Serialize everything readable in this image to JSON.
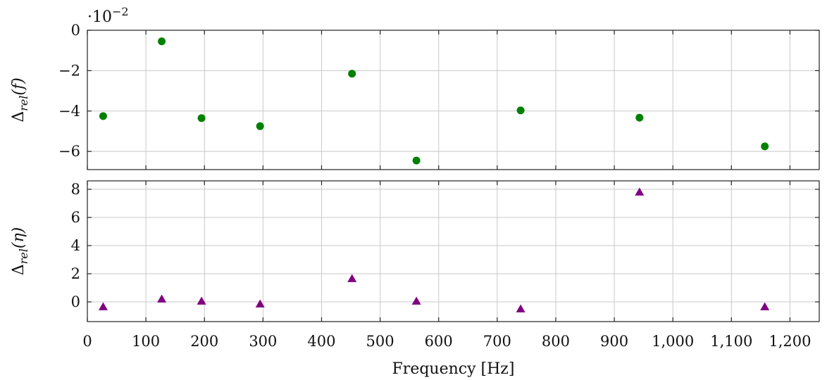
{
  "chart_data": [
    {
      "type": "scatter",
      "xlabel": "",
      "ylabel_main": "Δ",
      "ylabel_sub": "rel",
      "ylabel_arg": "(f)",
      "y_exponent_base": "·10",
      "y_exponent_power": "−2",
      "xlim": [
        0,
        1250
      ],
      "ylim": [
        -6.9,
        0
      ],
      "x_ticks": [
        0,
        100,
        200,
        300,
        400,
        500,
        600,
        700,
        800,
        900,
        1000,
        1100,
        1200
      ],
      "y_ticks": [
        0,
        -2,
        -4,
        -6
      ],
      "y_tick_labels": [
        "0",
        "−2",
        "−4",
        "−6"
      ],
      "grid": true,
      "marker": "circle",
      "color": "#008000",
      "x": [
        27,
        127,
        195,
        295,
        452,
        562,
        740,
        943,
        1157
      ],
      "y": [
        -4.25,
        -0.55,
        -4.35,
        -4.75,
        -2.15,
        -6.45,
        -3.97,
        -4.33,
        -5.75
      ]
    },
    {
      "type": "scatter",
      "xlabel": "Frequency [Hz]",
      "ylabel_main": "Δ",
      "ylabel_sub": "rel",
      "ylabel_arg": "(η)",
      "xlim": [
        0,
        1250
      ],
      "ylim": [
        -1.4,
        8.6
      ],
      "x_ticks": [
        0,
        100,
        200,
        300,
        400,
        500,
        600,
        700,
        800,
        900,
        1000,
        1100,
        1200
      ],
      "x_tick_labels": [
        "0",
        "100",
        "200",
        "300",
        "400",
        "500",
        "600",
        "700",
        "800",
        "900",
        "1,000",
        "1,100",
        "1,200"
      ],
      "y_ticks": [
        0,
        2,
        4,
        6,
        8
      ],
      "y_tick_labels": [
        "0",
        "2",
        "4",
        "6",
        "8"
      ],
      "grid": true,
      "marker": "triangle",
      "color": "#800080",
      "x": [
        27,
        127,
        195,
        295,
        452,
        562,
        740,
        943,
        1157
      ],
      "y": [
        -0.35,
        0.2,
        0.05,
        -0.15,
        1.65,
        0.05,
        -0.5,
        7.8,
        -0.35
      ]
    }
  ]
}
